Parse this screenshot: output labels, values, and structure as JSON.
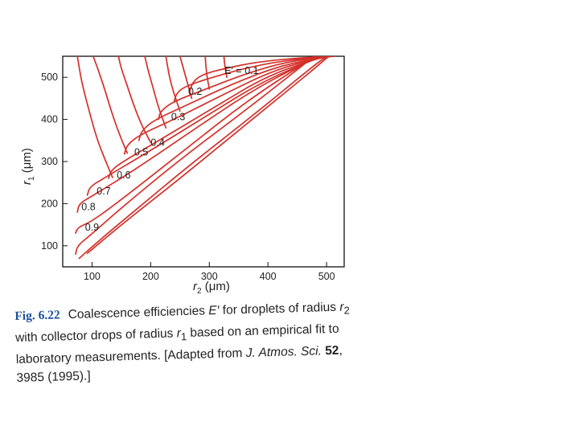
{
  "figure": {
    "label": "Fig. 6.22",
    "caption_1": "Coalescence efficiencies ",
    "caption_var_e": "E′",
    "caption_2": " for droplets of radius ",
    "caption_var_r2": "r",
    "caption_sub_2": "2",
    "caption_3": " with collector drops of radius ",
    "caption_var_r1": "r",
    "caption_sub_1": "1",
    "caption_4": " based on an empirical fit to laboratory measurements. [Adapted from ",
    "caption_journal": "J. Atmos. Sci.",
    "caption_volume": "52",
    "caption_5": ", 3985 (1995).]"
  },
  "chart_data": {
    "type": "line",
    "title": "",
    "xlabel_var": "r",
    "xlabel_sub": "2",
    "xlabel_unit": " (μm)",
    "ylabel_var": "r",
    "ylabel_sub": "1",
    "ylabel_unit": " (μm)",
    "xlim": [
      50,
      530
    ],
    "ylim": [
      50,
      550
    ],
    "xticks": [
      100,
      200,
      300,
      400,
      500
    ],
    "yticks": [
      100,
      200,
      300,
      400,
      500
    ],
    "xtick_labels": [
      "100",
      "200",
      "300",
      "400",
      "500"
    ],
    "ytick_labels": [
      "100",
      "200",
      "300",
      "400",
      "500"
    ],
    "grid": false,
    "line_color": "#d4302a",
    "series": [
      {
        "label": "0.1",
        "label_prefix": "E′ = ",
        "label_at": [
          326,
          508
        ],
        "points": [
          [
            267,
            468
          ],
          [
            272,
            490
          ],
          [
            290,
            508
          ],
          [
            330,
            522
          ],
          [
            380,
            536
          ],
          [
            450,
            546
          ],
          [
            515,
            550
          ]
        ]
      },
      {
        "label": "0.2",
        "label_at": [
          264,
          458
        ],
        "points": [
          [
            240,
            442
          ],
          [
            244,
            462
          ],
          [
            258,
            478
          ],
          [
            300,
            498
          ],
          [
            370,
            525
          ],
          [
            440,
            542
          ],
          [
            512,
            550
          ]
        ]
      },
      {
        "label": "0.3",
        "label_at": [
          235,
          398
        ],
        "points": [
          [
            213,
            400
          ],
          [
            217,
            420
          ],
          [
            238,
            442
          ],
          [
            290,
            470
          ],
          [
            365,
            510
          ],
          [
            435,
            538
          ],
          [
            510,
            550
          ]
        ]
      },
      {
        "label": "0.4",
        "label_at": [
          200,
          337
        ],
        "points": [
          [
            180,
            350
          ],
          [
            184,
            372
          ],
          [
            205,
            398
          ],
          [
            260,
            433
          ],
          [
            340,
            485
          ],
          [
            425,
            530
          ],
          [
            505,
            549
          ]
        ]
      },
      {
        "label": "0.5",
        "label_at": [
          172,
          314
        ],
        "points": [
          [
            155,
            318
          ],
          [
            160,
            340
          ],
          [
            182,
            364
          ],
          [
            240,
            400
          ],
          [
            325,
            460
          ],
          [
            415,
            520
          ],
          [
            500,
            549
          ]
        ]
      },
      {
        "label": "0.6",
        "label_at": [
          142,
          260
        ],
        "points": [
          [
            128,
            260
          ],
          [
            133,
            280
          ],
          [
            155,
            302
          ],
          [
            220,
            355
          ],
          [
            310,
            430
          ],
          [
            400,
            505
          ],
          [
            495,
            549
          ]
        ]
      },
      {
        "label": "0.7",
        "label_at": [
          108,
          222
        ],
        "points": [
          [
            92,
            220
          ],
          [
            96,
            240
          ],
          [
            122,
            262
          ],
          [
            195,
            322
          ],
          [
            295,
            408
          ],
          [
            390,
            490
          ],
          [
            490,
            549
          ]
        ]
      },
      {
        "label": "0.8",
        "label_at": [
          82,
          185
        ],
        "points": [
          [
            75,
            180
          ],
          [
            78,
            200
          ],
          [
            100,
            218
          ],
          [
            175,
            282
          ],
          [
            280,
            382
          ],
          [
            380,
            475
          ],
          [
            485,
            549
          ]
        ]
      },
      {
        "label": "0.9",
        "label_at": [
          88,
          136
        ],
        "points": [
          [
            72,
            130
          ],
          [
            76,
            144
          ],
          [
            100,
            158
          ],
          [
            160,
            220
          ],
          [
            260,
            330
          ],
          [
            370,
            450
          ],
          [
            480,
            549
          ]
        ]
      },
      {
        "label": "",
        "points": [
          [
            72,
            80
          ],
          [
            75,
            100
          ],
          [
            98,
            126
          ],
          [
            150,
            190
          ],
          [
            250,
            305
          ],
          [
            365,
            425
          ],
          [
            478,
            549
          ]
        ]
      },
      {
        "label": "",
        "points": [
          [
            78,
            70
          ],
          [
            110,
            110
          ],
          [
            170,
            180
          ],
          [
            265,
            290
          ],
          [
            375,
            410
          ],
          [
            480,
            530
          ],
          [
            500,
            549
          ]
        ]
      },
      {
        "label": "",
        "points": [
          [
            92,
            82
          ],
          [
            150,
            150
          ],
          [
            250,
            260
          ],
          [
            360,
            385
          ],
          [
            470,
            510
          ],
          [
            503,
            549
          ]
        ]
      },
      {
        "label": "",
        "points": [
          [
            200,
            345
          ],
          [
            185,
            385
          ],
          [
            172,
            430
          ],
          [
            160,
            480
          ],
          [
            150,
            520
          ],
          [
            145,
            550
          ]
        ]
      },
      {
        "label": "",
        "points": [
          [
            226,
            380
          ],
          [
            214,
            425
          ],
          [
            205,
            470
          ],
          [
            195,
            520
          ],
          [
            190,
            550
          ]
        ]
      },
      {
        "label": "",
        "points": [
          [
            250,
            420
          ],
          [
            240,
            460
          ],
          [
            232,
            500
          ],
          [
            226,
            550
          ]
        ]
      },
      {
        "label": "",
        "points": [
          [
            270,
            450
          ],
          [
            262,
            490
          ],
          [
            256,
            520
          ],
          [
            250,
            550
          ]
        ]
      },
      {
        "label": "",
        "points": [
          [
            160,
            320
          ],
          [
            148,
            360
          ],
          [
            135,
            410
          ],
          [
            122,
            470
          ],
          [
            110,
            520
          ],
          [
            102,
            550
          ]
        ]
      },
      {
        "label": "",
        "points": [
          [
            135,
            262
          ],
          [
            122,
            305
          ],
          [
            108,
            355
          ],
          [
            95,
            420
          ],
          [
            82,
            490
          ],
          [
            75,
            550
          ]
        ]
      },
      {
        "label": "",
        "points": [
          [
            300,
            472
          ],
          [
            295,
            510
          ],
          [
            293,
            550
          ]
        ]
      },
      {
        "label": "",
        "points": [
          [
            330,
            500
          ],
          [
            326,
            530
          ],
          [
            325,
            550
          ]
        ]
      }
    ]
  }
}
